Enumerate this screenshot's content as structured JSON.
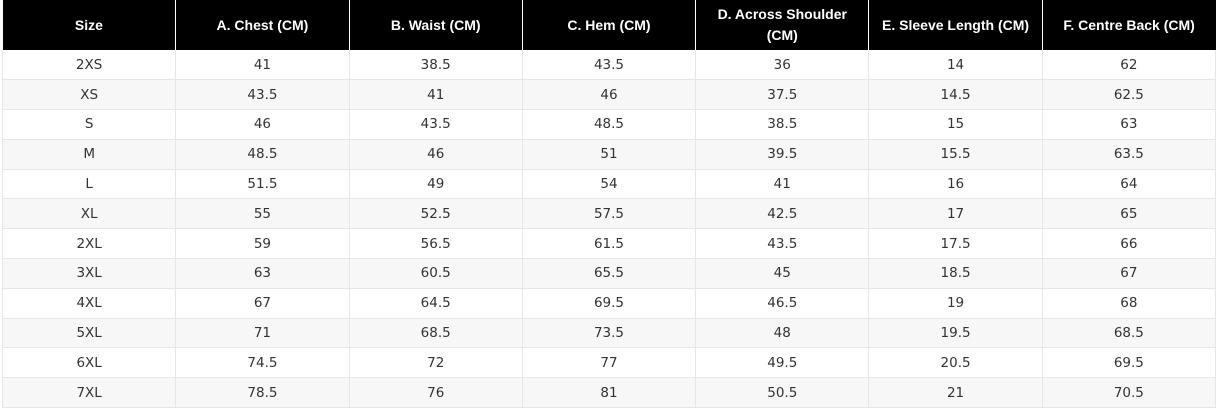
{
  "table": {
    "headers": [
      "Size",
      "A. Chest (CM)",
      "B. Waist (CM)",
      "C. Hem (CM)",
      "D. Across Shoulder (CM)",
      "E. Sleeve Length (CM)",
      "F. Centre Back (CM)"
    ],
    "rows": [
      [
        "2XS",
        "41",
        "38.5",
        "43.5",
        "36",
        "14",
        "62"
      ],
      [
        "XS",
        "43.5",
        "41",
        "46",
        "37.5",
        "14.5",
        "62.5"
      ],
      [
        "S",
        "46",
        "43.5",
        "48.5",
        "38.5",
        "15",
        "63"
      ],
      [
        "M",
        "48.5",
        "46",
        "51",
        "39.5",
        "15.5",
        "63.5"
      ],
      [
        "L",
        "51.5",
        "49",
        "54",
        "41",
        "16",
        "64"
      ],
      [
        "XL",
        "55",
        "52.5",
        "57.5",
        "42.5",
        "17",
        "65"
      ],
      [
        "2XL",
        "59",
        "56.5",
        "61.5",
        "43.5",
        "17.5",
        "66"
      ],
      [
        "3XL",
        "63",
        "60.5",
        "65.5",
        "45",
        "18.5",
        "67"
      ],
      [
        "4XL",
        "67",
        "64.5",
        "69.5",
        "46.5",
        "19",
        "68"
      ],
      [
        "5XL",
        "71",
        "68.5",
        "73.5",
        "48",
        "19.5",
        "68.5"
      ],
      [
        "6XL",
        "74.5",
        "72",
        "77",
        "49.5",
        "20.5",
        "69.5"
      ],
      [
        "7XL",
        "78.5",
        "76",
        "81",
        "50.5",
        "21",
        "70.5"
      ]
    ]
  },
  "colors": {
    "header_background": "#000000",
    "header_text": "#ffffff",
    "row_alt_background": "#f7f7f7",
    "cell_text": "#333333",
    "border": "#e6e6e6"
  }
}
